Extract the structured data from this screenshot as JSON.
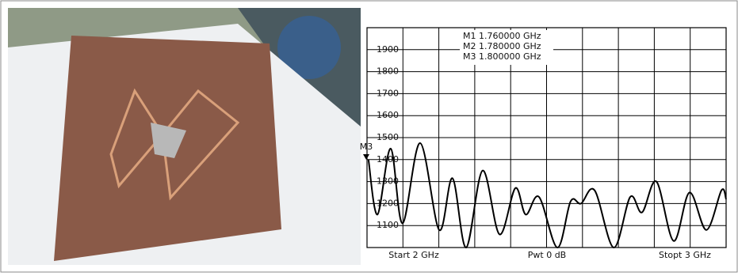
{
  "chart_data": {
    "type": "line",
    "annotations": [
      "M1  1.760000 GHz",
      "M2  1.780000 GHz",
      "M3  1.800000 GHz",
      "M3",
      "Start 2 GHz",
      "Pwt 0 dB",
      "Stopt 3 GHz"
    ],
    "x": [
      2.004,
      2.029,
      2.066,
      2.099,
      2.148,
      2.201,
      2.238,
      2.276,
      2.322,
      2.369,
      2.413,
      2.442,
      2.479,
      2.53,
      2.567,
      2.596,
      2.634,
      2.687,
      2.733,
      2.766,
      2.806,
      2.854,
      2.898,
      2.945,
      2.987,
      3.0
    ],
    "series": [
      {
        "color": "#000000",
        "values": [
          1400,
          1150,
          1450,
          1110,
          1475,
          1080,
          1315,
          1000,
          1350,
          1060,
          1270,
          1150,
          1230,
          1000,
          1210,
          1200,
          1260,
          1000,
          1230,
          1160,
          1300,
          1030,
          1250,
          1080,
          1260,
          1220
        ]
      }
    ],
    "xlim": [
      2,
      3
    ],
    "xticks": [
      2,
      2.1,
      2.2,
      2.3,
      2.4,
      2.5,
      2.6,
      2.7,
      2.8,
      2.9,
      3
    ],
    "ylim": [
      1000,
      2000
    ],
    "yticks": [
      1100,
      1200,
      1300,
      1400,
      1500,
      1600,
      1700,
      1800,
      1900
    ],
    "grid": true
  }
}
